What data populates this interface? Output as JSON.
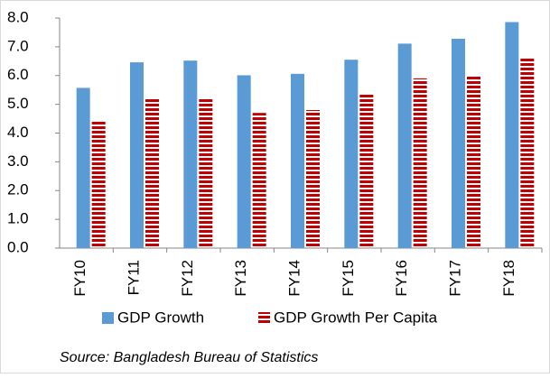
{
  "chart_data": {
    "type": "bar",
    "categories": [
      "FY10",
      "FY11",
      "FY12",
      "FY13",
      "FY14",
      "FY15",
      "FY16",
      "FY17",
      "FY18"
    ],
    "series": [
      {
        "name": "GDP Growth",
        "color": "#5b9bd5",
        "values": [
          5.57,
          6.46,
          6.52,
          6.01,
          6.06,
          6.55,
          7.11,
          7.28,
          7.86
        ]
      },
      {
        "name": "GDP Growth Per Capita",
        "color": "#c00000",
        "pattern": "stripes",
        "values": [
          4.45,
          5.2,
          5.2,
          4.7,
          4.8,
          5.35,
          5.9,
          6.0,
          6.65
        ]
      }
    ],
    "ylim": [
      0,
      8
    ],
    "yticks": [
      {
        "value": 0,
        "label": "0.0"
      },
      {
        "value": 1,
        "label": "1.0"
      },
      {
        "value": 2,
        "label": "2.0"
      },
      {
        "value": 3,
        "label": "3.0"
      },
      {
        "value": 4,
        "label": "4.0"
      },
      {
        "value": 5,
        "label": "5.0"
      },
      {
        "value": 6,
        "label": "6.0"
      },
      {
        "value": 7,
        "label": "7.0"
      },
      {
        "value": 8,
        "label": "8.0"
      }
    ],
    "legend": "bottom",
    "source": "Source: Bangladesh Bureau of Statistics"
  }
}
